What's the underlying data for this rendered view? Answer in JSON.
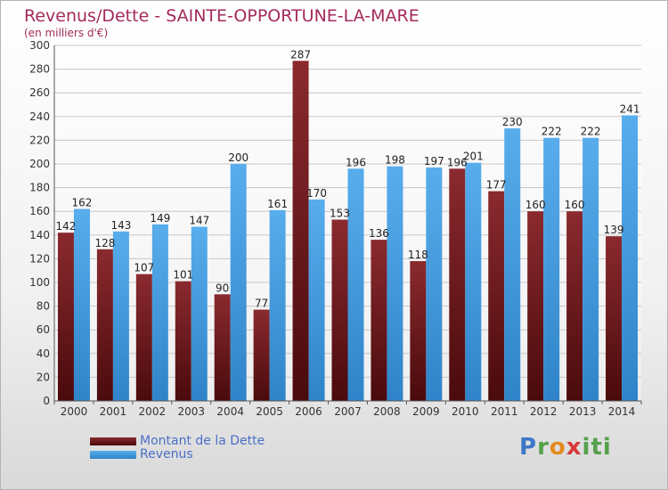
{
  "title": "Revenus/Dette - SAINTE-OPPORTUNE-LA-MARE",
  "subtitle": "(en milliers d'€)",
  "legend": {
    "debt_label": "Montant de la Dette",
    "revenue_label": "Revenus"
  },
  "logo_text": "Proxiti",
  "colors": {
    "debt": "#7a1f25",
    "revenue": "#4a9fe0"
  },
  "chart_data": {
    "type": "bar",
    "title": "Revenus/Dette - SAINTE-OPPORTUNE-LA-MARE",
    "subtitle": "(en milliers d'€)",
    "categories": [
      "2000",
      "2001",
      "2002",
      "2003",
      "2004",
      "2005",
      "2006",
      "2007",
      "2008",
      "2009",
      "2010",
      "2011",
      "2012",
      "2013",
      "2014"
    ],
    "series": [
      {
        "name": "Montant de la Dette",
        "values": [
          142,
          128,
          107,
          101,
          90,
          77,
          287,
          153,
          136,
          118,
          196,
          177,
          160,
          160,
          139
        ]
      },
      {
        "name": "Revenus",
        "values": [
          162,
          143,
          149,
          147,
          200,
          161,
          170,
          196,
          198,
          197,
          201,
          230,
          222,
          222,
          241
        ]
      }
    ],
    "ylim": [
      0,
      300
    ],
    "yticks": [
      0,
      20,
      40,
      60,
      80,
      100,
      120,
      140,
      160,
      180,
      200,
      220,
      240,
      260,
      280,
      300
    ],
    "grid": true,
    "legend_position": "bottom-left"
  }
}
